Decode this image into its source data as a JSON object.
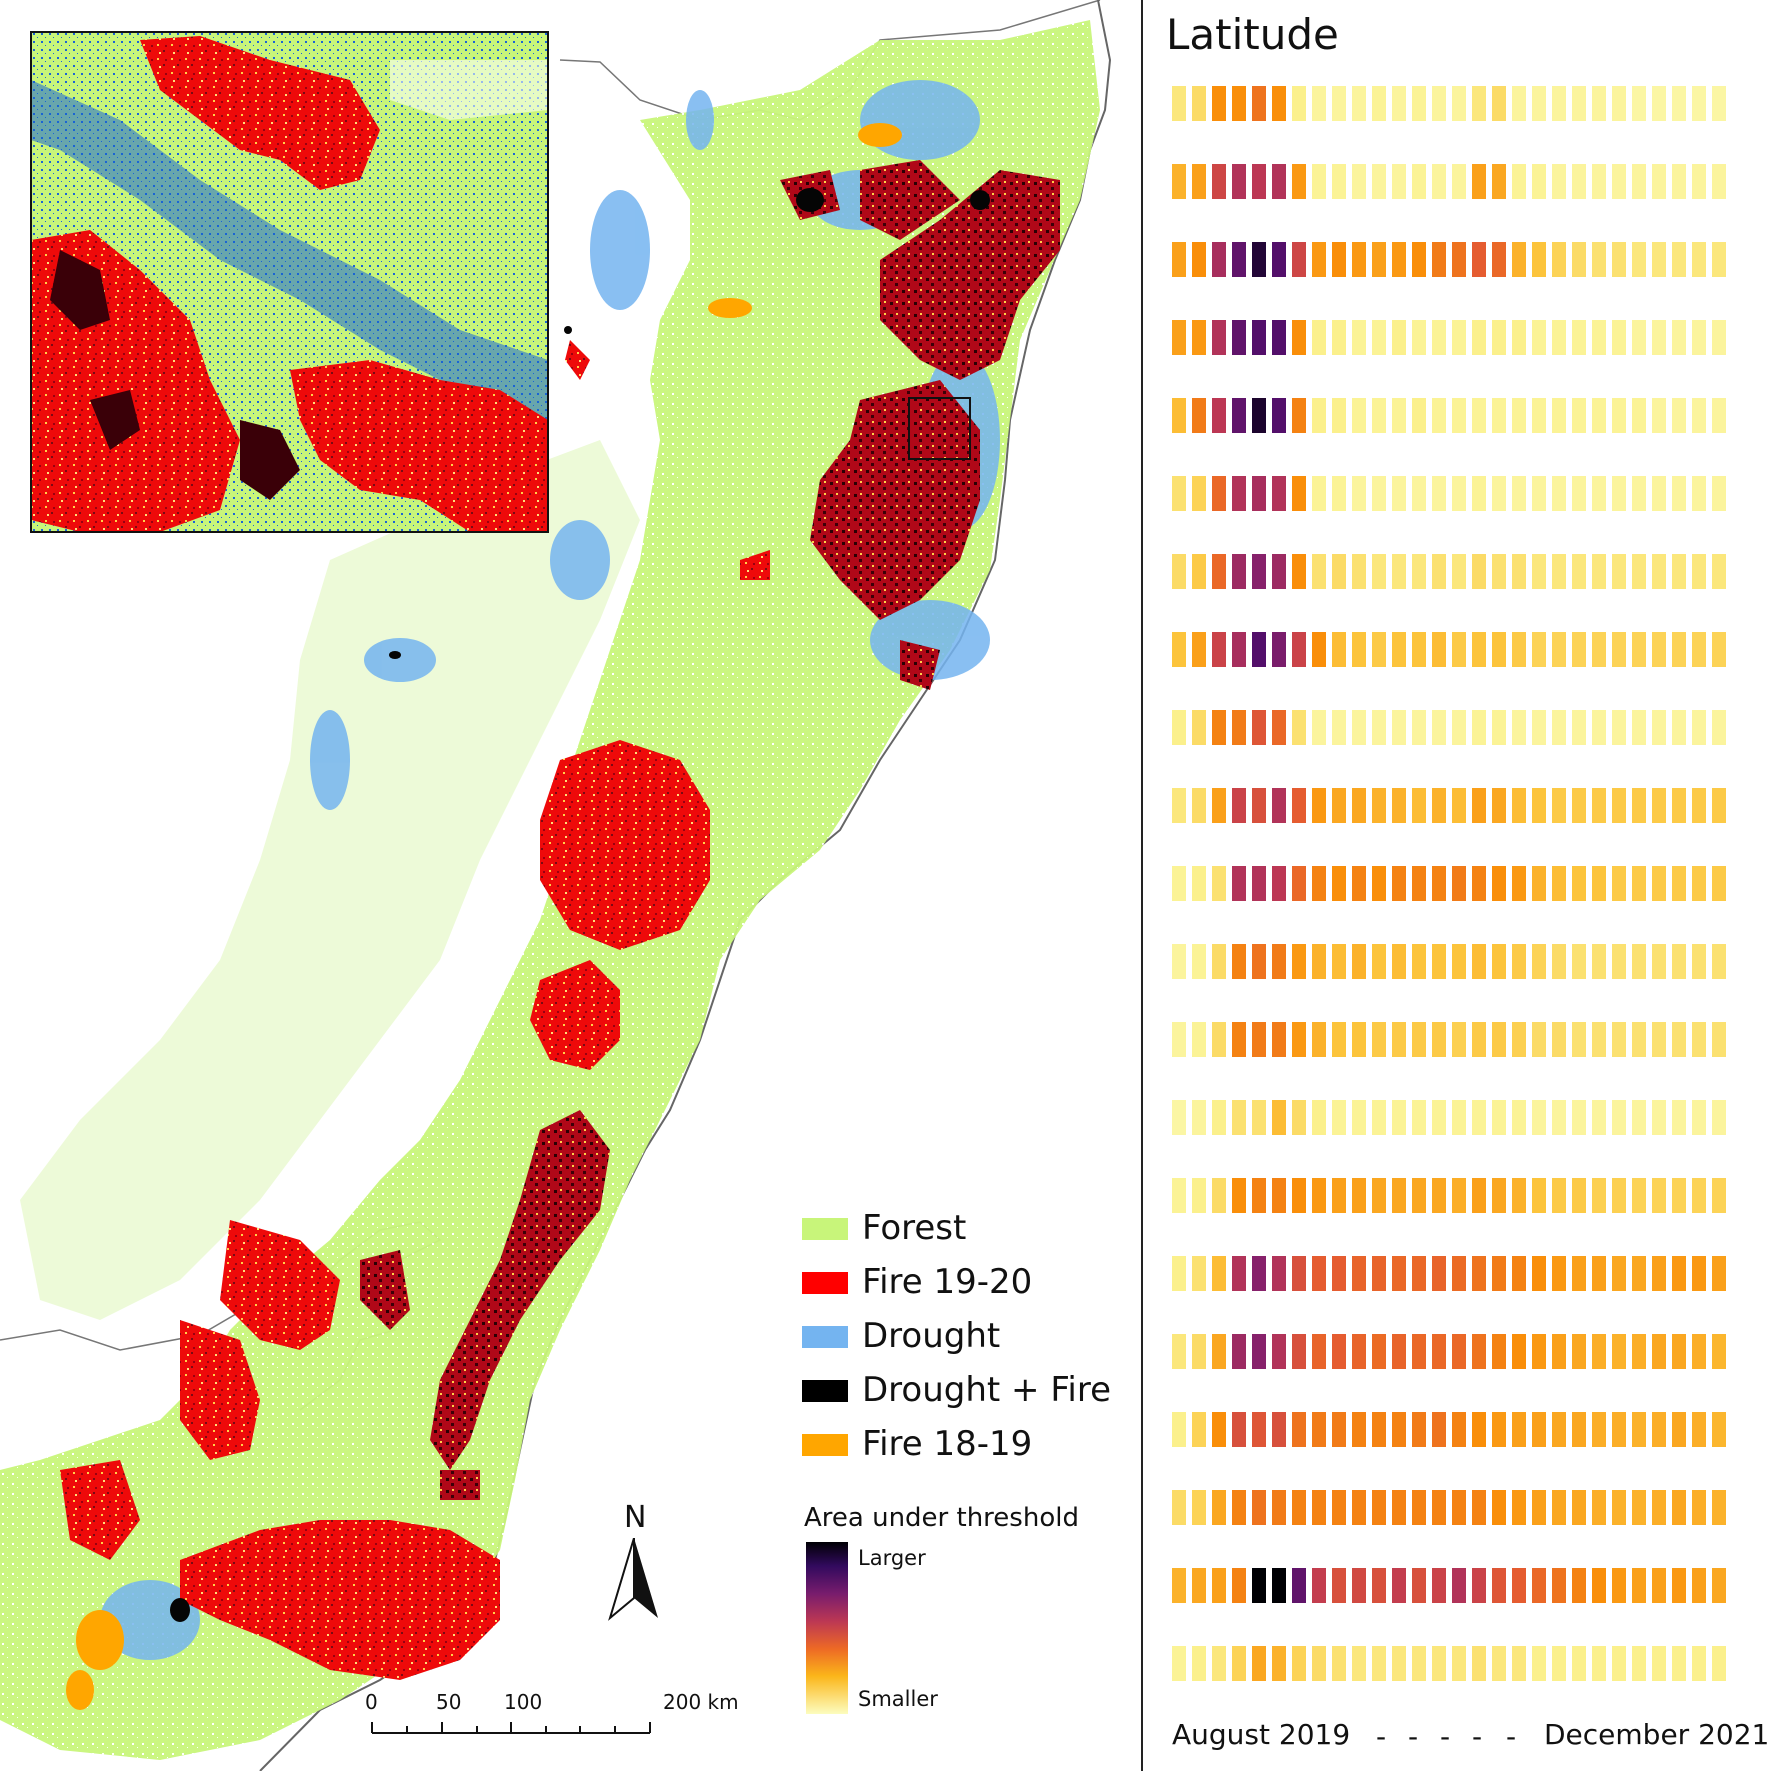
{
  "legend": {
    "items": [
      {
        "label": "Forest",
        "color": "#c8f57a"
      },
      {
        "label": "Fire 19-20",
        "color": "#ff0000"
      },
      {
        "label": "Drought",
        "color": "#74b4f0"
      },
      {
        "label": "Drought + Fire",
        "color": "#000000"
      },
      {
        "label": "Fire 18-19",
        "color": "#ffa600"
      }
    ]
  },
  "color_ramp": {
    "title": "Area under threshold",
    "high_label": "Larger",
    "low_label": "Smaller"
  },
  "north_arrow": {
    "label": "N"
  },
  "scale_bar": {
    "ticks": [
      "0",
      "50",
      "100",
      "200 km"
    ]
  },
  "inset": {
    "description_icon": "zoom-inset"
  },
  "heatmap": {
    "title": "Latitude",
    "x_start_label": "August 2019",
    "x_end_label": "December 2021",
    "x_dashes": [
      "-",
      "-",
      "-",
      "-",
      "-"
    ],
    "colormap": "inferno",
    "columns": 28,
    "row_values": [
      [
        0.18,
        0.22,
        0.45,
        0.45,
        0.52,
        0.45,
        0.15,
        0.1,
        0.1,
        0.1,
        0.12,
        0.1,
        0.12,
        0.1,
        0.1,
        0.18,
        0.22,
        0.1,
        0.1,
        0.1,
        0.1,
        0.1,
        0.1,
        0.08,
        0.08,
        0.08,
        0.08,
        0.08
      ],
      [
        0.35,
        0.4,
        0.65,
        0.72,
        0.7,
        0.72,
        0.42,
        0.12,
        0.12,
        0.1,
        0.1,
        0.1,
        0.12,
        0.1,
        0.1,
        0.4,
        0.38,
        0.12,
        0.12,
        0.1,
        0.1,
        0.1,
        0.1,
        0.1,
        0.1,
        0.1,
        0.1,
        0.1
      ],
      [
        0.4,
        0.45,
        0.74,
        0.86,
        0.95,
        0.88,
        0.65,
        0.42,
        0.45,
        0.42,
        0.4,
        0.42,
        0.45,
        0.5,
        0.52,
        0.58,
        0.55,
        0.35,
        0.3,
        0.25,
        0.22,
        0.2,
        0.2,
        0.18,
        0.18,
        0.18,
        0.18,
        0.18
      ],
      [
        0.4,
        0.42,
        0.72,
        0.86,
        0.88,
        0.88,
        0.45,
        0.15,
        0.15,
        0.12,
        0.12,
        0.15,
        0.12,
        0.12,
        0.12,
        0.15,
        0.15,
        0.15,
        0.12,
        0.12,
        0.12,
        0.12,
        0.12,
        0.1,
        0.1,
        0.1,
        0.1,
        0.1
      ],
      [
        0.32,
        0.5,
        0.7,
        0.86,
        0.96,
        0.88,
        0.48,
        0.15,
        0.15,
        0.12,
        0.12,
        0.12,
        0.15,
        0.12,
        0.12,
        0.12,
        0.12,
        0.12,
        0.12,
        0.12,
        0.12,
        0.12,
        0.12,
        0.12,
        0.1,
        0.1,
        0.1,
        0.1
      ],
      [
        0.2,
        0.25,
        0.55,
        0.72,
        0.74,
        0.72,
        0.45,
        0.12,
        0.12,
        0.1,
        0.1,
        0.1,
        0.1,
        0.1,
        0.1,
        0.12,
        0.1,
        0.1,
        0.1,
        0.1,
        0.1,
        0.1,
        0.1,
        0.1,
        0.1,
        0.1,
        0.1,
        0.1
      ],
      [
        0.22,
        0.28,
        0.55,
        0.76,
        0.8,
        0.76,
        0.45,
        0.2,
        0.22,
        0.2,
        0.18,
        0.18,
        0.18,
        0.2,
        0.18,
        0.22,
        0.2,
        0.2,
        0.18,
        0.18,
        0.18,
        0.18,
        0.18,
        0.18,
        0.18,
        0.18,
        0.18,
        0.18
      ],
      [
        0.3,
        0.4,
        0.66,
        0.74,
        0.88,
        0.82,
        0.66,
        0.45,
        0.32,
        0.3,
        0.28,
        0.3,
        0.3,
        0.32,
        0.28,
        0.3,
        0.3,
        0.28,
        0.25,
        0.25,
        0.25,
        0.25,
        0.25,
        0.25,
        0.25,
        0.25,
        0.25,
        0.25
      ],
      [
        0.15,
        0.22,
        0.48,
        0.5,
        0.6,
        0.55,
        0.2,
        0.1,
        0.1,
        0.1,
        0.1,
        0.1,
        0.1,
        0.1,
        0.1,
        0.12,
        0.12,
        0.1,
        0.1,
        0.1,
        0.1,
        0.1,
        0.1,
        0.1,
        0.1,
        0.1,
        0.1,
        0.1
      ],
      [
        0.18,
        0.22,
        0.4,
        0.66,
        0.62,
        0.72,
        0.58,
        0.42,
        0.38,
        0.38,
        0.35,
        0.35,
        0.32,
        0.35,
        0.32,
        0.4,
        0.38,
        0.32,
        0.3,
        0.28,
        0.28,
        0.28,
        0.28,
        0.28,
        0.28,
        0.28,
        0.28,
        0.28
      ],
      [
        0.12,
        0.15,
        0.2,
        0.72,
        0.72,
        0.7,
        0.55,
        0.48,
        0.45,
        0.48,
        0.45,
        0.48,
        0.48,
        0.48,
        0.5,
        0.48,
        0.45,
        0.42,
        0.35,
        0.32,
        0.3,
        0.3,
        0.28,
        0.28,
        0.28,
        0.28,
        0.28,
        0.28
      ],
      [
        0.1,
        0.12,
        0.22,
        0.48,
        0.52,
        0.5,
        0.42,
        0.35,
        0.32,
        0.35,
        0.3,
        0.32,
        0.3,
        0.3,
        0.3,
        0.32,
        0.3,
        0.28,
        0.25,
        0.22,
        0.2,
        0.2,
        0.2,
        0.2,
        0.2,
        0.2,
        0.2,
        0.2
      ],
      [
        0.1,
        0.12,
        0.22,
        0.48,
        0.5,
        0.5,
        0.42,
        0.35,
        0.3,
        0.3,
        0.28,
        0.28,
        0.28,
        0.28,
        0.26,
        0.28,
        0.28,
        0.26,
        0.22,
        0.22,
        0.2,
        0.2,
        0.2,
        0.2,
        0.2,
        0.2,
        0.2,
        0.2
      ],
      [
        0.08,
        0.1,
        0.15,
        0.2,
        0.2,
        0.32,
        0.22,
        0.15,
        0.12,
        0.12,
        0.12,
        0.12,
        0.12,
        0.12,
        0.12,
        0.12,
        0.12,
        0.12,
        0.1,
        0.1,
        0.1,
        0.1,
        0.1,
        0.1,
        0.1,
        0.1,
        0.1,
        0.1
      ],
      [
        0.12,
        0.15,
        0.22,
        0.45,
        0.48,
        0.48,
        0.45,
        0.42,
        0.4,
        0.4,
        0.38,
        0.38,
        0.38,
        0.38,
        0.36,
        0.4,
        0.38,
        0.35,
        0.3,
        0.28,
        0.28,
        0.26,
        0.26,
        0.25,
        0.25,
        0.25,
        0.25,
        0.25
      ],
      [
        0.15,
        0.2,
        0.32,
        0.72,
        0.8,
        0.72,
        0.62,
        0.58,
        0.58,
        0.56,
        0.56,
        0.55,
        0.55,
        0.56,
        0.54,
        0.52,
        0.5,
        0.48,
        0.45,
        0.42,
        0.4,
        0.4,
        0.38,
        0.38,
        0.4,
        0.42,
        0.42,
        0.4
      ],
      [
        0.18,
        0.22,
        0.38,
        0.76,
        0.8,
        0.72,
        0.62,
        0.56,
        0.58,
        0.56,
        0.54,
        0.56,
        0.55,
        0.55,
        0.55,
        0.52,
        0.48,
        0.45,
        0.42,
        0.4,
        0.38,
        0.36,
        0.35,
        0.36,
        0.38,
        0.38,
        0.36,
        0.34
      ],
      [
        0.15,
        0.25,
        0.45,
        0.62,
        0.6,
        0.62,
        0.52,
        0.5,
        0.5,
        0.48,
        0.48,
        0.48,
        0.5,
        0.52,
        0.48,
        0.45,
        0.42,
        0.4,
        0.4,
        0.38,
        0.38,
        0.36,
        0.36,
        0.35,
        0.36,
        0.38,
        0.36,
        0.34
      ],
      [
        0.22,
        0.25,
        0.38,
        0.48,
        0.52,
        0.5,
        0.48,
        0.48,
        0.48,
        0.48,
        0.48,
        0.48,
        0.48,
        0.48,
        0.48,
        0.48,
        0.45,
        0.42,
        0.4,
        0.38,
        0.38,
        0.36,
        0.35,
        0.35,
        0.36,
        0.38,
        0.36,
        0.35
      ],
      [
        0.35,
        0.38,
        0.4,
        0.48,
        1.0,
        1.0,
        0.86,
        0.68,
        0.62,
        0.64,
        0.62,
        0.68,
        0.62,
        0.66,
        0.72,
        0.66,
        0.6,
        0.58,
        0.55,
        0.52,
        0.48,
        0.45,
        0.42,
        0.4,
        0.4,
        0.42,
        0.4,
        0.38
      ],
      [
        0.12,
        0.15,
        0.18,
        0.25,
        0.38,
        0.35,
        0.25,
        0.22,
        0.2,
        0.18,
        0.18,
        0.18,
        0.18,
        0.18,
        0.18,
        0.2,
        0.18,
        0.18,
        0.15,
        0.15,
        0.15,
        0.15,
        0.15,
        0.15,
        0.15,
        0.15,
        0.15,
        0.15
      ]
    ]
  },
  "chart_data": {
    "type": "heatmap",
    "title": "Latitude",
    "xlabel": "",
    "ylabel": "",
    "x_range_labels": [
      "August 2019",
      "December 2021"
    ],
    "columns": 28,
    "rows": 21,
    "colorbar": {
      "title": "Area under threshold",
      "high": "Larger",
      "low": "Smaller",
      "colormap": "inferno"
    }
  }
}
